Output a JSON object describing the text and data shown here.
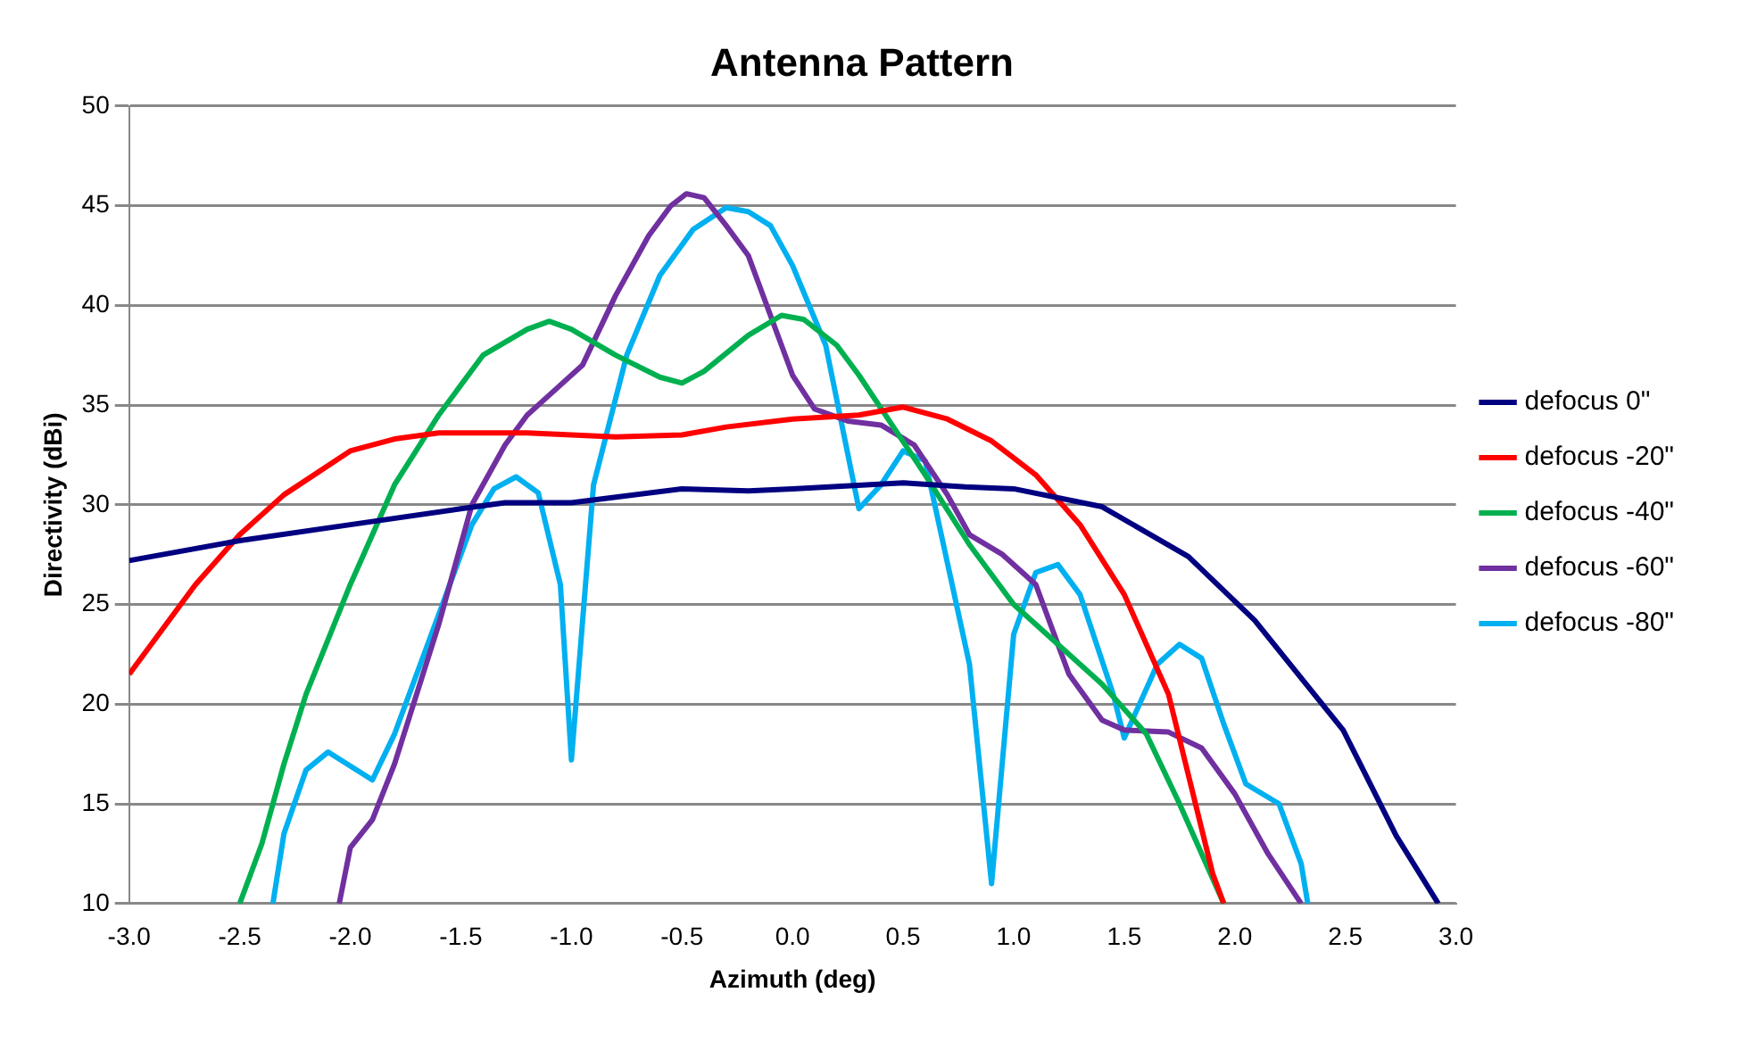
{
  "chart_data": {
    "type": "line",
    "title": "Antenna Pattern",
    "xlabel": "Azimuth (deg)",
    "ylabel": "Directivity (dBi)",
    "xlim": [
      -3,
      3
    ],
    "ylim": [
      10,
      50
    ],
    "xticks": [
      {
        "value": -3,
        "label": "-3.0"
      },
      {
        "value": -2.5,
        "label": "-2.5"
      },
      {
        "value": -2,
        "label": "-2.0"
      },
      {
        "value": -1.5,
        "label": "-1.5"
      },
      {
        "value": -1,
        "label": "-1.0"
      },
      {
        "value": -0.5,
        "label": "-0.5"
      },
      {
        "value": 0,
        "label": "0.0"
      },
      {
        "value": 0.5,
        "label": "0.5"
      },
      {
        "value": 1,
        "label": "1.0"
      },
      {
        "value": 1.5,
        "label": "1.5"
      },
      {
        "value": 2,
        "label": "2.0"
      },
      {
        "value": 2.5,
        "label": "2.5"
      },
      {
        "value": 3,
        "label": "3.0"
      }
    ],
    "yticks": [
      10,
      15,
      20,
      25,
      30,
      35,
      40,
      45,
      50
    ],
    "grid": "y",
    "legend": "right",
    "marker": "none",
    "line_style": "solid",
    "series": [
      {
        "name": "defocus 0\"",
        "color": "#000080",
        "x": [
          -3,
          -2.5,
          -2,
          -1.5,
          -1.3,
          -1,
          -0.5,
          -0.2,
          0,
          0.5,
          0.78,
          1,
          1.4,
          1.79,
          2.09,
          2.49,
          2.73,
          2.92
        ],
        "values": [
          27.2,
          28.2,
          29,
          29.8,
          30.1,
          30.1,
          30.8,
          30.7,
          30.8,
          31.1,
          30.9,
          30.8,
          29.9,
          27.4,
          24.2,
          18.7,
          13.4,
          10
        ]
      },
      {
        "name": "defocus -20\"",
        "color": "#ff0000",
        "x": [
          -3,
          -2.7,
          -2.5,
          -2.3,
          -2,
          -1.8,
          -1.6,
          -1.2,
          -1,
          -0.8,
          -0.5,
          -0.3,
          0,
          0.3,
          0.5,
          0.7,
          0.9,
          1.1,
          1.3,
          1.5,
          1.7,
          1.8,
          1.9,
          1.95
        ],
        "values": [
          21.5,
          26,
          28.5,
          30.5,
          32.7,
          33.3,
          33.6,
          33.6,
          33.5,
          33.4,
          33.5,
          33.9,
          34.3,
          34.5,
          34.9,
          34.3,
          33.2,
          31.5,
          29,
          25.5,
          20.5,
          16,
          11.5,
          10
        ]
      },
      {
        "name": "defocus -40\"",
        "color": "#00b050",
        "x": [
          -2.5,
          -2.4,
          -2.3,
          -2.2,
          -2,
          -1.8,
          -1.6,
          -1.4,
          -1.2,
          -1.1,
          -1,
          -0.8,
          -0.6,
          -0.5,
          -0.4,
          -0.2,
          -0.05,
          0.05,
          0.2,
          0.3,
          0.45,
          0.6,
          0.8,
          1,
          1.2,
          1.4,
          1.6,
          1.75,
          1.85,
          1.95
        ],
        "values": [
          10,
          13,
          17,
          20.5,
          26,
          31,
          34.5,
          37.5,
          38.8,
          39.2,
          38.8,
          37.5,
          36.4,
          36.1,
          36.7,
          38.5,
          39.5,
          39.3,
          38,
          36.5,
          34,
          31.5,
          28,
          25,
          23,
          21,
          18.5,
          15,
          12.5,
          10
        ]
      },
      {
        "name": "defocus -60\"",
        "color": "#7030a0",
        "x": [
          -2.05,
          -2,
          -1.9,
          -1.8,
          -1.6,
          -1.45,
          -1.3,
          -1.2,
          -1.1,
          -0.95,
          -0.8,
          -0.65,
          -0.55,
          -0.48,
          -0.4,
          -0.3,
          -0.2,
          -0.1,
          0,
          0.1,
          0.25,
          0.4,
          0.55,
          0.7,
          0.8,
          0.95,
          1.1,
          1.25,
          1.4,
          1.5,
          1.7,
          1.85,
          2,
          2.15,
          2.3
        ],
        "values": [
          10,
          12.8,
          14.2,
          17,
          24,
          30,
          33,
          34.5,
          35.5,
          37,
          40.5,
          43.5,
          45,
          45.6,
          45.4,
          44,
          42.5,
          39.5,
          36.5,
          34.8,
          34.2,
          34,
          33,
          30.5,
          28.5,
          27.5,
          26,
          21.5,
          19.2,
          18.7,
          18.6,
          17.8,
          15.5,
          12.5,
          10
        ]
      },
      {
        "name": "defocus -80\"",
        "color": "#00b0f0",
        "x": [
          -2.35,
          -2.3,
          -2.2,
          -2.1,
          -1.9,
          -1.8,
          -1.6,
          -1.45,
          -1.35,
          -1.25,
          -1.15,
          -1.05,
          -1,
          -0.9,
          -0.75,
          -0.6,
          -0.45,
          -0.3,
          -0.2,
          -0.1,
          0,
          0.15,
          0.3,
          0.4,
          0.5,
          0.6,
          0.8,
          0.9,
          1,
          1.1,
          1.2,
          1.3,
          1.45,
          1.5,
          1.65,
          1.75,
          1.85,
          1.95,
          2.05,
          2.2,
          2.3,
          2.33
        ],
        "values": [
          10,
          13.5,
          16.7,
          17.6,
          16.2,
          18.5,
          24.5,
          29,
          30.8,
          31.4,
          30.6,
          26,
          17.2,
          31,
          37.5,
          41.5,
          43.8,
          44.9,
          44.7,
          44,
          42,
          38,
          29.8,
          31,
          32.7,
          32.2,
          22,
          11,
          23.5,
          26.6,
          27,
          25.5,
          20.5,
          18.3,
          22,
          23,
          22.3,
          19,
          16,
          15,
          12,
          10
        ]
      }
    ]
  }
}
